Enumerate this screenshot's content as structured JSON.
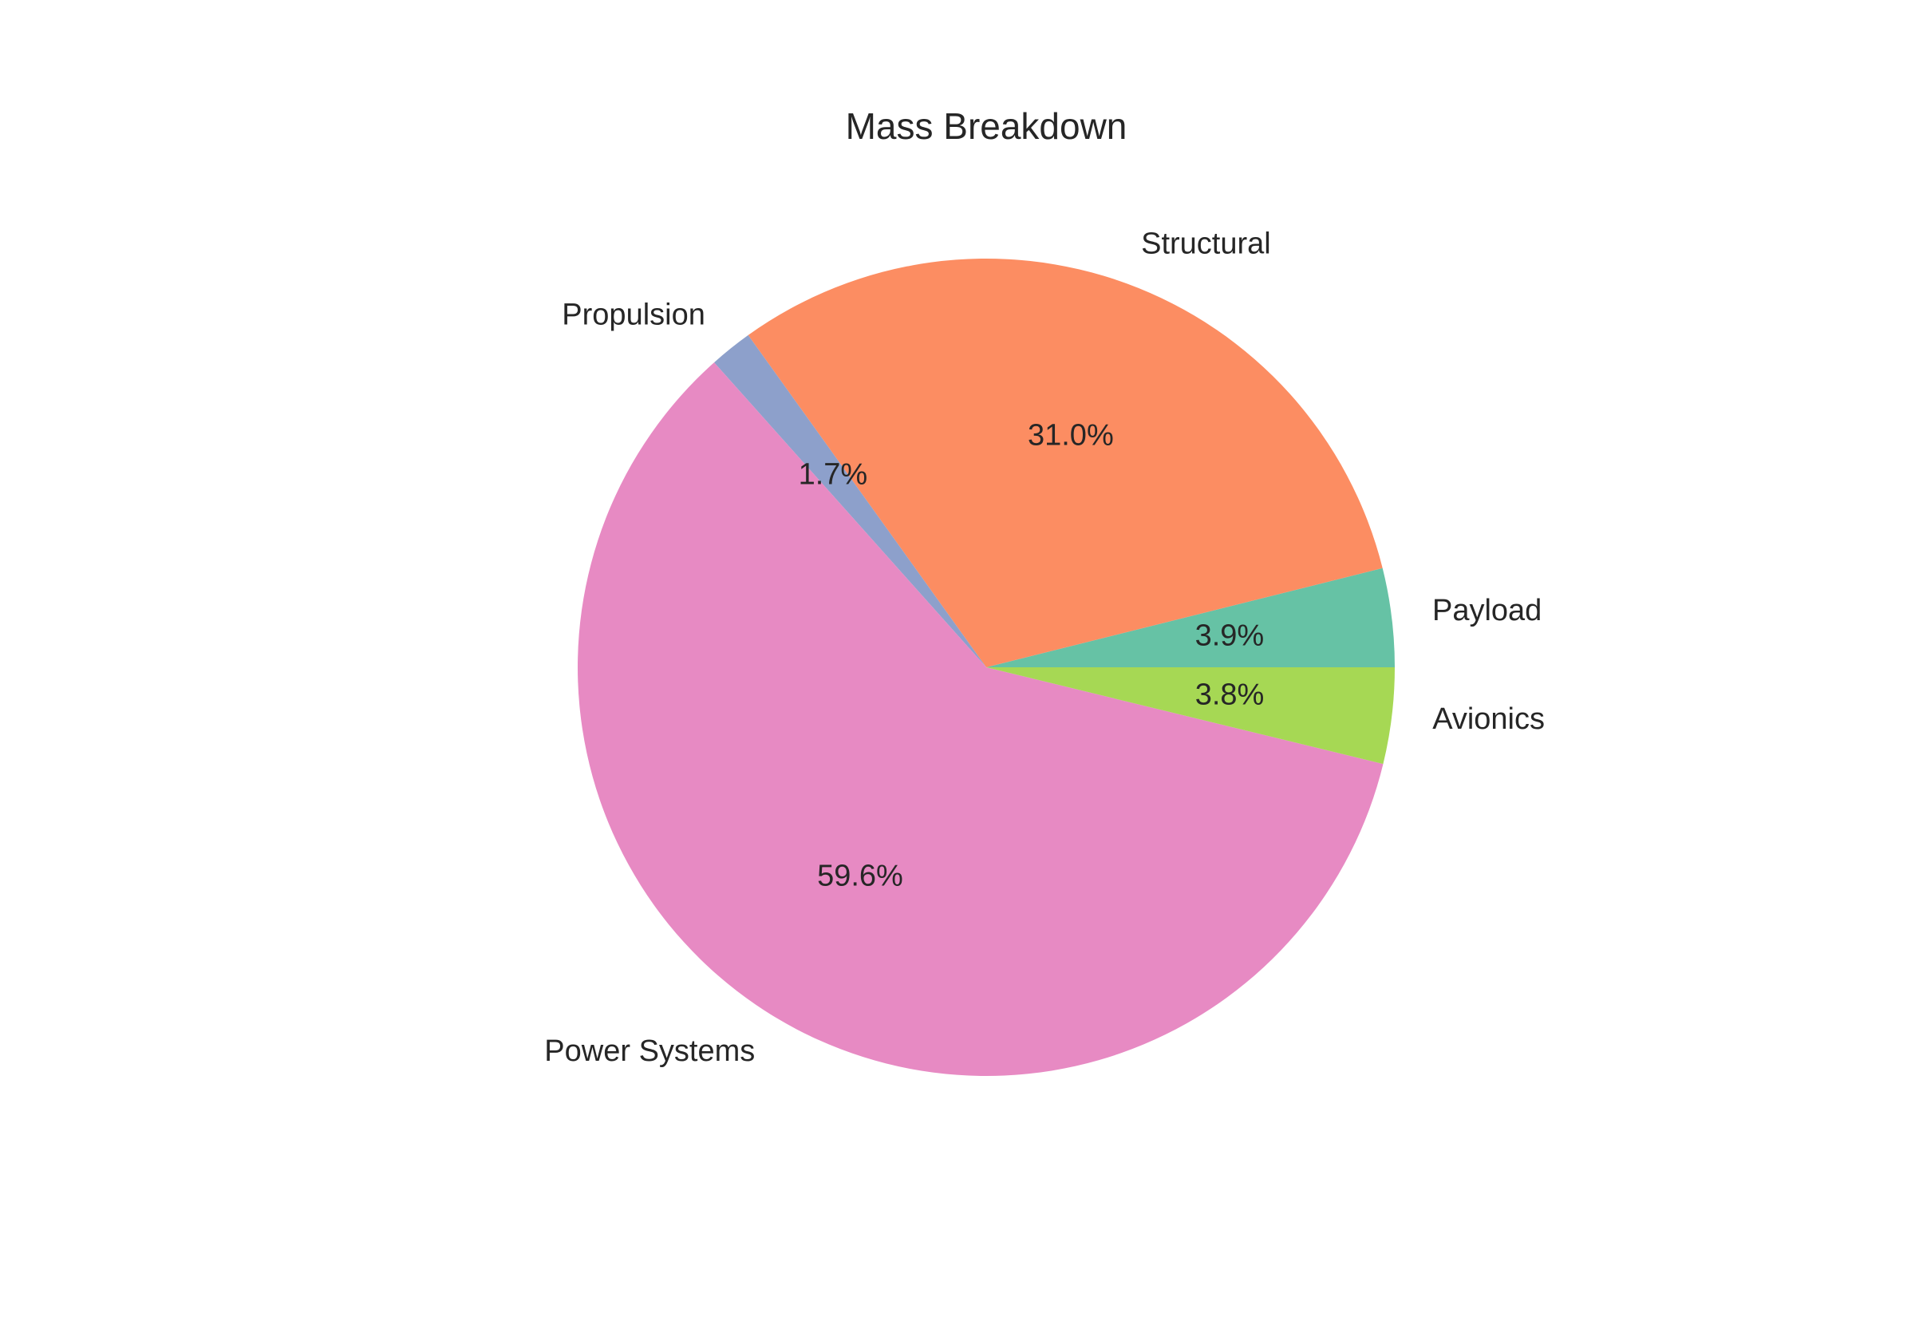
{
  "chart_data": {
    "type": "pie",
    "title": "Mass Breakdown",
    "start_angle_deg": 0,
    "direction": "counterclockwise",
    "slices": [
      {
        "label": "Payload",
        "value": 3.9,
        "pct_label": "3.9%",
        "color": "#66c2a5"
      },
      {
        "label": "Structural",
        "value": 31.0,
        "pct_label": "31.0%",
        "color": "#fc8d62"
      },
      {
        "label": "Propulsion",
        "value": 1.7,
        "pct_label": "1.7%",
        "color": "#8da0cb"
      },
      {
        "label": "Power Systems",
        "value": 59.6,
        "pct_label": "59.6%",
        "color": "#e78ac3"
      },
      {
        "label": "Avionics",
        "value": 3.8,
        "pct_label": "3.8%",
        "color": "#a6d854"
      }
    ]
  }
}
